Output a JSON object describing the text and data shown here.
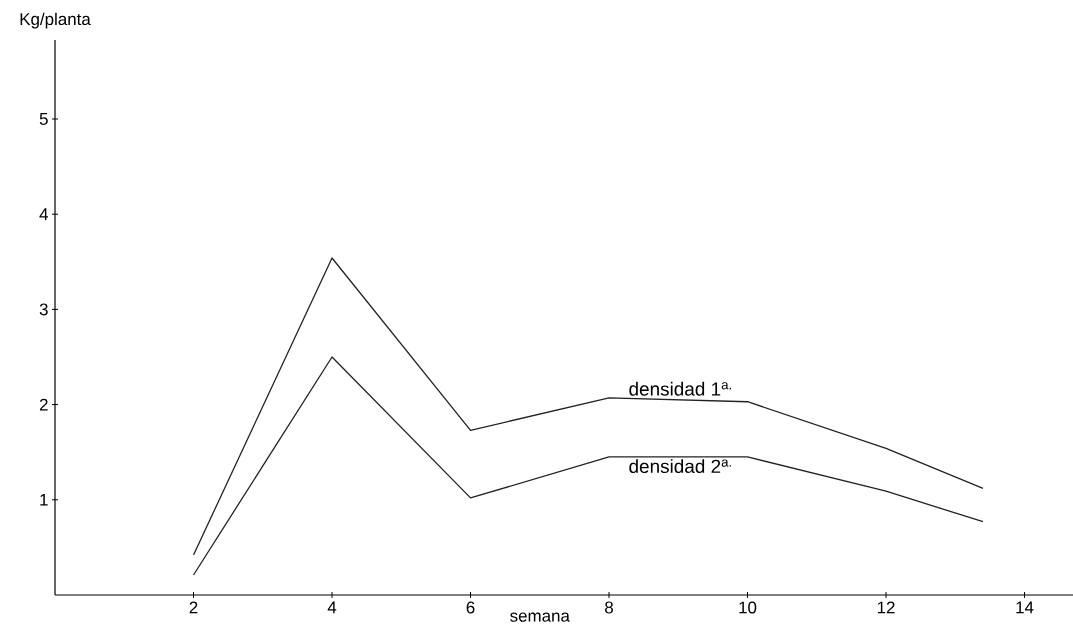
{
  "chart_data": {
    "type": "line",
    "xlabel": "semana",
    "ylabel": "Kg/planta",
    "xlim": [
      0,
      14.7
    ],
    "ylim": [
      0,
      5.83
    ],
    "xticks": [
      2,
      4,
      6,
      8,
      10,
      12,
      14
    ],
    "yticks": [
      1,
      2,
      3,
      4,
      5
    ],
    "grid": false,
    "legend": false,
    "marker": "none",
    "line_style": "solid",
    "series": [
      {
        "name": "densidad 1$^{a.}$",
        "color": "#222222",
        "x": [
          2,
          4,
          6,
          8,
          10,
          12,
          13.4
        ],
        "values": [
          0.42,
          3.54,
          1.73,
          2.07,
          2.03,
          1.54,
          1.12
        ]
      },
      {
        "name": "densidad 2$^{a.}$",
        "color": "#222222",
        "x": [
          2,
          4,
          6,
          8,
          10,
          12,
          13.4
        ],
        "values": [
          0.21,
          2.5,
          1.02,
          1.45,
          1.45,
          1.09,
          0.77
        ]
      }
    ]
  }
}
